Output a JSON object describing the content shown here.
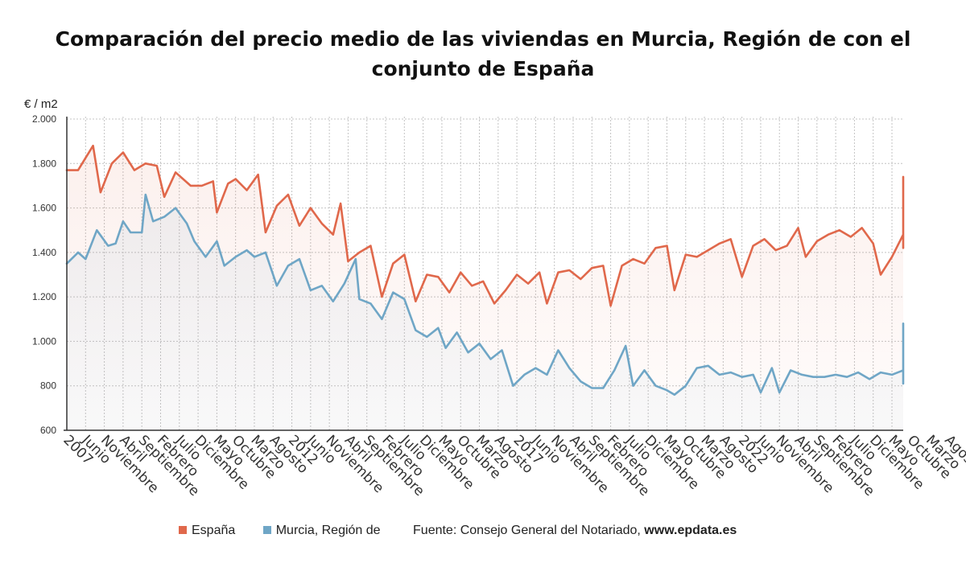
{
  "chart_data": {
    "type": "line",
    "title": "Comparación del precio medio de las viviendas en Murcia, Región de con el conjunto de España",
    "ylabel": "€ / m2",
    "ylim": [
      600,
      2000
    ],
    "y_ticks": [
      600,
      800,
      1000,
      1200,
      1400,
      1600,
      1800,
      2000
    ],
    "y_tick_labels": [
      "600",
      "800",
      "1.000",
      "1.200",
      "1.400",
      "1.600",
      "1.800",
      "2.000"
    ],
    "x_start": "2007-01",
    "x_end": "2025-08",
    "x_tick_labels": [
      {
        "date": "2007-01",
        "label": "2007"
      },
      {
        "date": "2007-06",
        "label": "Junio"
      },
      {
        "date": "2007-11",
        "label": "Noviembre"
      },
      {
        "date": "2008-04",
        "label": "Abril"
      },
      {
        "date": "2008-09",
        "label": "Septiembre"
      },
      {
        "date": "2009-02",
        "label": "Febrero"
      },
      {
        "date": "2009-07",
        "label": "Julio"
      },
      {
        "date": "2009-12",
        "label": "Diciembre"
      },
      {
        "date": "2010-05",
        "label": "Mayo"
      },
      {
        "date": "2010-10",
        "label": "Octubre"
      },
      {
        "date": "2011-03",
        "label": "Marzo"
      },
      {
        "date": "2011-08",
        "label": "Agosto"
      },
      {
        "date": "2012-01",
        "label": "2012"
      },
      {
        "date": "2012-06",
        "label": "Junio"
      },
      {
        "date": "2012-11",
        "label": "Noviembre"
      },
      {
        "date": "2013-04",
        "label": "Abril"
      },
      {
        "date": "2013-09",
        "label": "Septiembre"
      },
      {
        "date": "2014-02",
        "label": "Febrero"
      },
      {
        "date": "2014-07",
        "label": "Julio"
      },
      {
        "date": "2014-12",
        "label": "Diciembre"
      },
      {
        "date": "2015-05",
        "label": "Mayo"
      },
      {
        "date": "2015-10",
        "label": "Octubre"
      },
      {
        "date": "2016-03",
        "label": "Marzo"
      },
      {
        "date": "2016-08",
        "label": "Agosto"
      },
      {
        "date": "2017-01",
        "label": "2017"
      },
      {
        "date": "2017-06",
        "label": "Junio"
      },
      {
        "date": "2017-11",
        "label": "Noviembre"
      },
      {
        "date": "2018-04",
        "label": "Abril"
      },
      {
        "date": "2018-09",
        "label": "Septiembre"
      },
      {
        "date": "2019-02",
        "label": "Febrero"
      },
      {
        "date": "2019-07",
        "label": "Julio"
      },
      {
        "date": "2019-12",
        "label": "Diciembre"
      },
      {
        "date": "2020-05",
        "label": "Mayo"
      },
      {
        "date": "2020-10",
        "label": "Octubre"
      },
      {
        "date": "2021-03",
        "label": "Marzo"
      },
      {
        "date": "2021-08",
        "label": "Agosto"
      },
      {
        "date": "2022-01",
        "label": "2022"
      },
      {
        "date": "2022-06",
        "label": "Junio"
      },
      {
        "date": "2022-11",
        "label": "Noviembre"
      },
      {
        "date": "2023-04",
        "label": "Abril"
      },
      {
        "date": "2023-09",
        "label": "Septiembre"
      },
      {
        "date": "2024-02",
        "label": "Febrero"
      },
      {
        "date": "2024-07",
        "label": "Julio"
      },
      {
        "date": "2024-12",
        "label": "Diciembre"
      },
      {
        "date": "2025-05",
        "label": "Mayo"
      },
      {
        "date": "2025-10",
        "label": "Octubre"
      },
      {
        "date": "2026-03",
        "label": "Marzo"
      },
      {
        "date": "2026-08",
        "label": "Agosto"
      }
    ],
    "grid": true,
    "legend_position": "bottom",
    "series": [
      {
        "name": "España",
        "color": "#e0684b",
        "points": [
          [
            "2007-01",
            1770
          ],
          [
            "2007-04",
            1770
          ],
          [
            "2007-08",
            1880
          ],
          [
            "2007-10",
            1670
          ],
          [
            "2008-01",
            1800
          ],
          [
            "2008-04",
            1850
          ],
          [
            "2008-07",
            1770
          ],
          [
            "2008-10",
            1800
          ],
          [
            "2009-01",
            1790
          ],
          [
            "2009-03",
            1650
          ],
          [
            "2009-06",
            1760
          ],
          [
            "2009-10",
            1700
          ],
          [
            "2010-01",
            1700
          ],
          [
            "2010-04",
            1720
          ],
          [
            "2010-05",
            1580
          ],
          [
            "2010-08",
            1710
          ],
          [
            "2010-10",
            1730
          ],
          [
            "2011-01",
            1680
          ],
          [
            "2011-04",
            1750
          ],
          [
            "2011-06",
            1490
          ],
          [
            "2011-09",
            1610
          ],
          [
            "2011-12",
            1660
          ],
          [
            "2012-03",
            1520
          ],
          [
            "2012-06",
            1600
          ],
          [
            "2012-09",
            1530
          ],
          [
            "2012-12",
            1480
          ],
          [
            "2013-02",
            1620
          ],
          [
            "2013-04",
            1360
          ],
          [
            "2013-07",
            1400
          ],
          [
            "2013-10",
            1430
          ],
          [
            "2014-01",
            1200
          ],
          [
            "2014-04",
            1350
          ],
          [
            "2014-07",
            1390
          ],
          [
            "2014-10",
            1180
          ],
          [
            "2015-01",
            1300
          ],
          [
            "2015-04",
            1290
          ],
          [
            "2015-07",
            1220
          ],
          [
            "2015-10",
            1310
          ],
          [
            "2016-01",
            1250
          ],
          [
            "2016-04",
            1270
          ],
          [
            "2016-07",
            1170
          ],
          [
            "2016-10",
            1230
          ],
          [
            "2017-01",
            1300
          ],
          [
            "2017-04",
            1260
          ],
          [
            "2017-07",
            1310
          ],
          [
            "2017-09",
            1170
          ],
          [
            "2017-12",
            1310
          ],
          [
            "2018-03",
            1320
          ],
          [
            "2018-06",
            1280
          ],
          [
            "2018-09",
            1330
          ],
          [
            "2018-12",
            1340
          ],
          [
            "2019-02",
            1160
          ],
          [
            "2019-05",
            1340
          ],
          [
            "2019-08",
            1370
          ],
          [
            "2019-11",
            1350
          ],
          [
            "2020-02",
            1420
          ],
          [
            "2020-05",
            1430
          ],
          [
            "2020-07",
            1230
          ],
          [
            "2020-10",
            1390
          ],
          [
            "2021-01",
            1380
          ],
          [
            "2021-04",
            1410
          ],
          [
            "2021-07",
            1440
          ],
          [
            "2021-10",
            1460
          ],
          [
            "2022-01",
            1290
          ],
          [
            "2022-04",
            1430
          ],
          [
            "2022-07",
            1460
          ],
          [
            "2022-10",
            1410
          ],
          [
            "2023-01",
            1430
          ],
          [
            "2023-04",
            1510
          ],
          [
            "2023-06",
            1380
          ],
          [
            "2023-09",
            1450
          ],
          [
            "2023-12",
            1480
          ],
          [
            "2024-03",
            1500
          ],
          [
            "2024-06",
            1470
          ],
          [
            "2024-09",
            1510
          ],
          [
            "2024-12",
            1440
          ],
          [
            "2025-02",
            1300
          ],
          [
            "2025-05",
            1380
          ],
          [
            "2025-08",
            1480
          ],
          [
            "2025-10",
            1420
          ],
          [
            "2026-01",
            1480
          ],
          [
            "2026-04",
            1560
          ],
          [
            "2026-06",
            1440
          ],
          [
            "2026-09",
            1540
          ],
          [
            "2026-12",
            1580
          ],
          [
            "2027-03",
            1640
          ],
          [
            "2027-06",
            1600
          ],
          [
            "2027-09",
            1680
          ],
          [
            "2027-11",
            1500
          ],
          [
            "2028-02",
            1660
          ],
          [
            "2028-05",
            1580
          ],
          [
            "2028-08",
            1620
          ],
          [
            "2028-11",
            1620
          ],
          [
            "2029-02",
            1640
          ],
          [
            "2029-05",
            1680
          ],
          [
            "2029-06",
            1540
          ],
          [
            "2029-09",
            1650
          ],
          [
            "2029-12",
            1690
          ],
          [
            "2030-03",
            1700
          ],
          [
            "2030-06",
            1680
          ],
          [
            "2030-09",
            1740
          ],
          [
            "2030-11",
            1730
          ],
          [
            "2031-01",
            1600
          ]
        ]
      },
      {
        "name": "Murcia, Región de",
        "color": "#6fa6c6",
        "points": [
          [
            "2007-01",
            1350
          ],
          [
            "2007-04",
            1400
          ],
          [
            "2007-06",
            1370
          ],
          [
            "2007-09",
            1500
          ],
          [
            "2007-12",
            1430
          ],
          [
            "2008-02",
            1440
          ],
          [
            "2008-04",
            1540
          ],
          [
            "2008-06",
            1490
          ],
          [
            "2008-09",
            1490
          ],
          [
            "2008-10",
            1660
          ],
          [
            "2008-12",
            1540
          ],
          [
            "2009-03",
            1560
          ],
          [
            "2009-06",
            1600
          ],
          [
            "2009-09",
            1530
          ],
          [
            "2009-11",
            1450
          ],
          [
            "2010-02",
            1380
          ],
          [
            "2010-05",
            1450
          ],
          [
            "2010-07",
            1340
          ],
          [
            "2010-10",
            1380
          ],
          [
            "2011-01",
            1410
          ],
          [
            "2011-03",
            1380
          ],
          [
            "2011-06",
            1400
          ],
          [
            "2011-09",
            1250
          ],
          [
            "2011-12",
            1340
          ],
          [
            "2012-03",
            1370
          ],
          [
            "2012-06",
            1230
          ],
          [
            "2012-09",
            1250
          ],
          [
            "2012-12",
            1180
          ],
          [
            "2013-03",
            1260
          ],
          [
            "2013-06",
            1370
          ],
          [
            "2013-07",
            1190
          ],
          [
            "2013-10",
            1170
          ],
          [
            "2014-01",
            1100
          ],
          [
            "2014-04",
            1220
          ],
          [
            "2014-07",
            1190
          ],
          [
            "2014-10",
            1050
          ],
          [
            "2015-01",
            1020
          ],
          [
            "2015-04",
            1060
          ],
          [
            "2015-06",
            970
          ],
          [
            "2015-09",
            1040
          ],
          [
            "2015-12",
            950
          ],
          [
            "2016-03",
            990
          ],
          [
            "2016-06",
            920
          ],
          [
            "2016-09",
            960
          ],
          [
            "2016-12",
            800
          ],
          [
            "2017-03",
            850
          ],
          [
            "2017-06",
            880
          ],
          [
            "2017-09",
            850
          ],
          [
            "2017-12",
            960
          ],
          [
            "2018-03",
            880
          ],
          [
            "2018-06",
            820
          ],
          [
            "2018-09",
            790
          ],
          [
            "2018-12",
            790
          ],
          [
            "2019-03",
            870
          ],
          [
            "2019-06",
            980
          ],
          [
            "2019-08",
            800
          ],
          [
            "2019-11",
            870
          ],
          [
            "2020-02",
            800
          ],
          [
            "2020-05",
            780
          ],
          [
            "2020-07",
            760
          ],
          [
            "2020-10",
            800
          ],
          [
            "2021-01",
            880
          ],
          [
            "2021-04",
            890
          ],
          [
            "2021-07",
            850
          ],
          [
            "2021-10",
            860
          ],
          [
            "2022-01",
            840
          ],
          [
            "2022-04",
            850
          ],
          [
            "2022-06",
            770
          ],
          [
            "2022-09",
            880
          ],
          [
            "2022-11",
            770
          ],
          [
            "2023-02",
            870
          ],
          [
            "2023-05",
            850
          ],
          [
            "2023-08",
            840
          ],
          [
            "2023-11",
            840
          ],
          [
            "2024-02",
            850
          ],
          [
            "2024-05",
            840
          ],
          [
            "2024-08",
            860
          ],
          [
            "2024-11",
            830
          ],
          [
            "2025-02",
            860
          ],
          [
            "2025-05",
            850
          ],
          [
            "2025-08",
            870
          ],
          [
            "2025-11",
            860
          ],
          [
            "2026-02",
            930
          ],
          [
            "2026-05",
            880
          ],
          [
            "2026-07",
            810
          ],
          [
            "2026-10",
            880
          ],
          [
            "2027-01",
            890
          ],
          [
            "2027-04",
            900
          ],
          [
            "2027-07",
            880
          ],
          [
            "2027-10",
            860
          ],
          [
            "2028-01",
            850
          ],
          [
            "2028-04",
            870
          ],
          [
            "2028-07",
            860
          ],
          [
            "2028-10",
            860
          ],
          [
            "2029-01",
            850
          ],
          [
            "2029-04",
            910
          ],
          [
            "2029-07",
            870
          ],
          [
            "2029-10",
            880
          ],
          [
            "2030-01",
            930
          ],
          [
            "2030-04",
            950
          ],
          [
            "2030-07",
            1000
          ],
          [
            "2030-10",
            1080
          ],
          [
            "2031-01",
            1080
          ]
        ]
      }
    ]
  },
  "legend": {
    "items": [
      {
        "label": "España",
        "color": "#e0684b"
      },
      {
        "label": "Murcia, Región de",
        "color": "#6fa6c6"
      }
    ],
    "source_label": "Fuente: Consejo General del Notariado, ",
    "source_site": "www.epdata.es"
  }
}
